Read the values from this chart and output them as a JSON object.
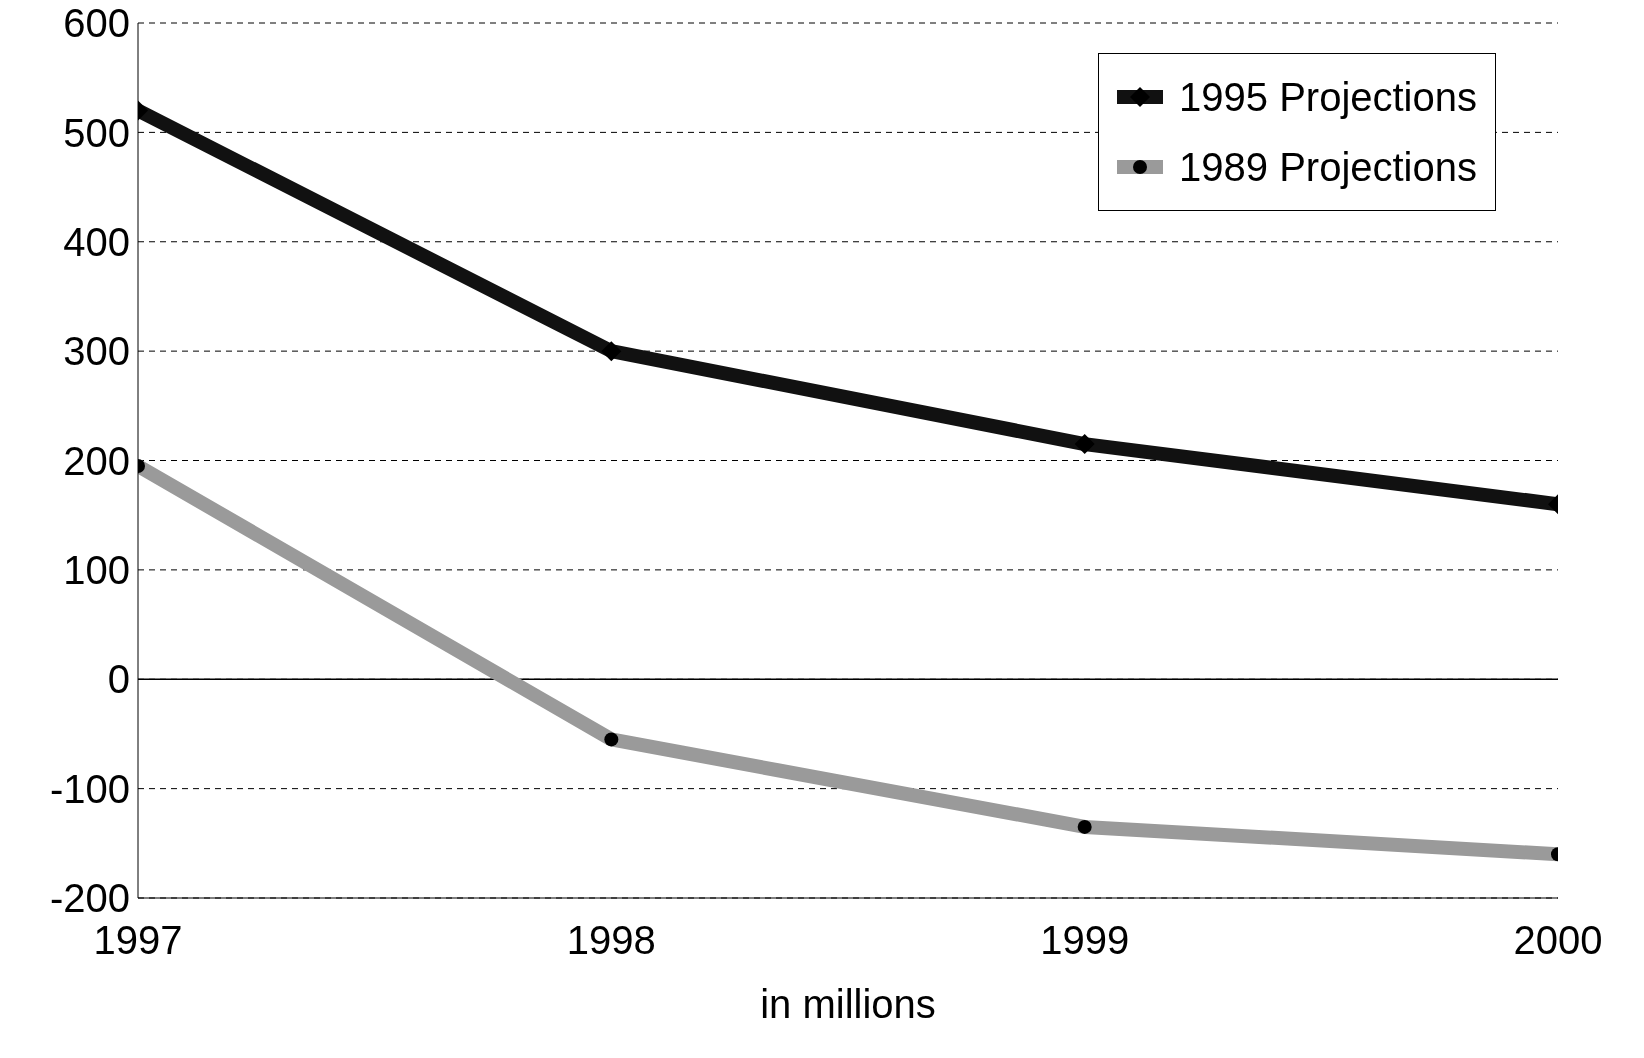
{
  "chart_data": {
    "type": "line",
    "xlabel": "in millions",
    "x": [
      1997,
      1998,
      1999,
      2000
    ],
    "xlim": [
      1997,
      2000
    ],
    "xticks": [
      1997,
      1998,
      1999,
      2000
    ],
    "ylim": [
      -200,
      600
    ],
    "yticks": [
      -200,
      -100,
      0,
      100,
      200,
      300,
      400,
      500,
      600
    ],
    "grid": "y",
    "legend": "top right",
    "line_style": "solid",
    "ref_lines": [
      {
        "axis": "y",
        "value": 0
      }
    ],
    "series": [
      {
        "name": "1995 Projections",
        "color": "#111111",
        "marker": "diamond",
        "values": [
          520,
          300,
          215,
          160
        ]
      },
      {
        "name": "1989 Projections",
        "color": "#9a9a9a",
        "marker": "circle",
        "values": [
          195,
          -55,
          -135,
          -160
        ]
      }
    ]
  }
}
